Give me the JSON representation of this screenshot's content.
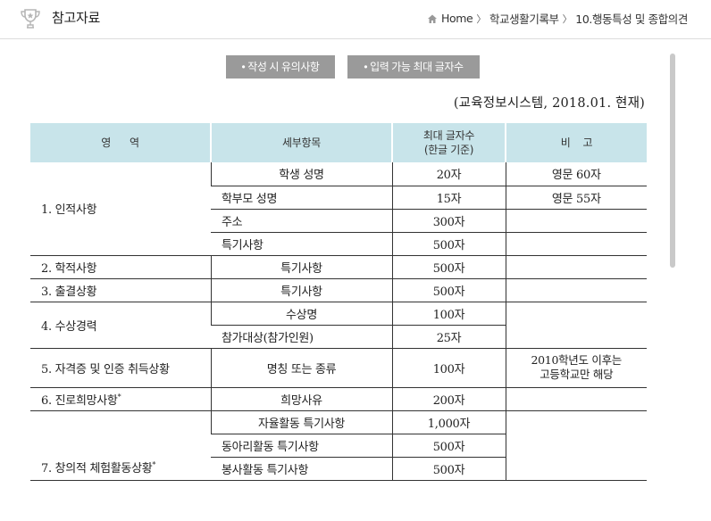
{
  "header": {
    "title": "참고자료",
    "breadcrumb": {
      "home": "Home",
      "level1": "학교생활기록부",
      "level2": "10.행동특성 및 종합의견"
    }
  },
  "buttons": {
    "notes": "• 작성 시 유의사항",
    "max_chars": "• 입력 가능 최대 글자수"
  },
  "source_note": "(교육정보시스템, 2018.01. 현재)",
  "table": {
    "headers": {
      "area": "영      역",
      "item": "세부항목",
      "max_line1": "최대 글자수",
      "max_line2": "(한글 기준)",
      "remark": "비    고"
    },
    "rows": {
      "r1": {
        "area": "1. 인적사항",
        "items": [
          "학생 성명",
          "학부모 성명",
          "주소",
          "특기사항"
        ],
        "limits": [
          "20자",
          "15자",
          "300자",
          "500자"
        ],
        "remarks": [
          "영문 60자",
          "영문 55자"
        ]
      },
      "r2": {
        "area": "2. 학적사항",
        "item": "특기사항",
        "limit": "500자"
      },
      "r3": {
        "area": "3. 출결상황",
        "item": "특기사항",
        "limit": "500자"
      },
      "r4": {
        "area": "4. 수상경력",
        "items": [
          "수상명",
          "참가대상(참가인원)"
        ],
        "limits": [
          "100자",
          "25자"
        ]
      },
      "r5": {
        "area": "5. 자격증 및 인증 취득상황",
        "item": "명칭 또는 종류",
        "limit": "100자",
        "remark_line1": "2010학년도 이후는",
        "remark_line2": "고등학교만 해당"
      },
      "r6": {
        "area": "6. 진로희망사항",
        "mark": "*",
        "item": "희망사유",
        "limit": "200자"
      },
      "r7": {
        "area": "7. 창의적 체험활동상황",
        "mark": "*",
        "items": [
          "자율활동 특기사항",
          "동아리활동 특기사항",
          "봉사활동 특기사항"
        ],
        "limits": [
          "1,000자",
          "500자",
          "500자"
        ]
      }
    }
  },
  "colors": {
    "header_bg": "#c8e4ea",
    "button_bg": "#9a9a9a",
    "scroll_thumb": "#c9c9c9"
  },
  "icons": {
    "title_icon": "trophy-icon",
    "breadcrumb_icon": "home-icon"
  }
}
